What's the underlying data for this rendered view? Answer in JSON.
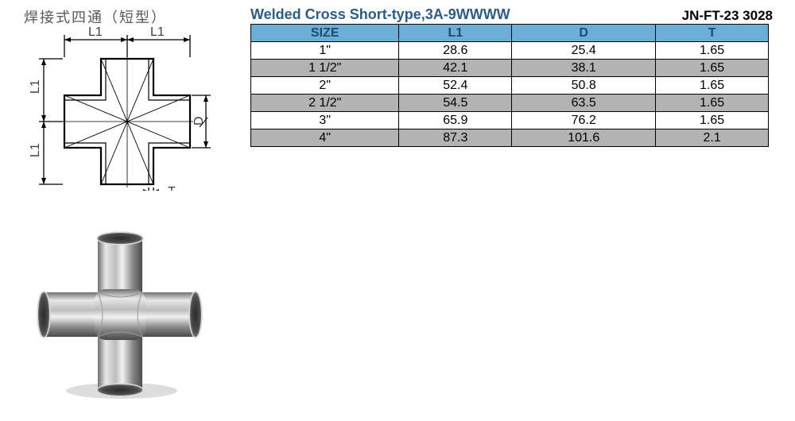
{
  "titles": {
    "chinese": "焊接式四通（短型）",
    "english": "Welded Cross Short-type,3A-9WWWW",
    "part_no": "JN-FT-23 3028"
  },
  "diagram": {
    "labels": {
      "L1": "L1",
      "D": "D",
      "T": "T"
    },
    "stroke_color": "#000000",
    "text_color": "#404040"
  },
  "table": {
    "header_bg": "#6bafd6",
    "header_text": "#1e4a70",
    "alt_row_bg": "#b3b3b3",
    "reg_row_bg": "#ffffff",
    "border_color": "#000000",
    "columns": [
      "SIZE",
      "L1",
      "D",
      "T"
    ],
    "rows": [
      {
        "alt": false,
        "cells": [
          "1\"",
          "28.6",
          "25.4",
          "1.65"
        ]
      },
      {
        "alt": true,
        "cells": [
          "1 1/2\"",
          "42.1",
          "38.1",
          "1.65"
        ]
      },
      {
        "alt": false,
        "cells": [
          "2\"",
          "52.4",
          "50.8",
          "1.65"
        ]
      },
      {
        "alt": true,
        "cells": [
          "2 1/2\"",
          "54.5",
          "63.5",
          "1.65"
        ]
      },
      {
        "alt": false,
        "cells": [
          "3\"",
          "65.9",
          "76.2",
          "1.65"
        ]
      },
      {
        "alt": true,
        "cells": [
          "4\"",
          "87.3",
          "101.6",
          "2.1"
        ]
      }
    ]
  },
  "photo": {
    "pipe_light": "#e8e8e8",
    "pipe_mid": "#bcbcbc",
    "pipe_dark": "#6f6f6f",
    "pipe_shade": "#4a4a4a"
  }
}
